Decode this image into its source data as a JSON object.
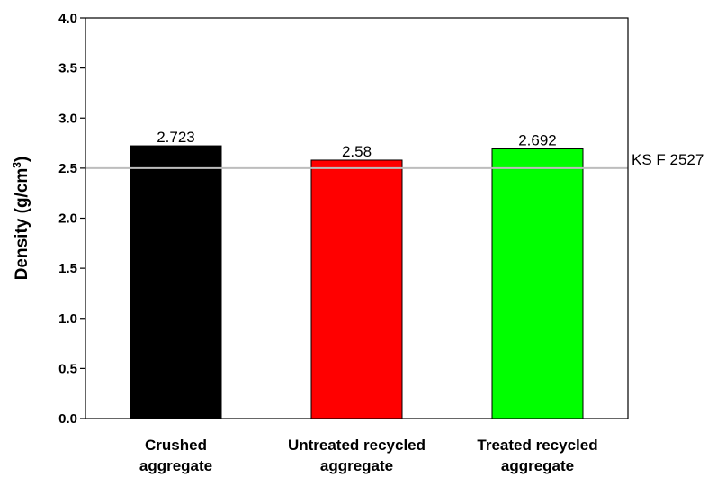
{
  "chart_data": {
    "type": "bar",
    "categories": [
      [
        "Crushed",
        "aggregate"
      ],
      [
        "Untreated recycled",
        "aggregate"
      ],
      [
        "Treated recycled",
        "aggregate"
      ]
    ],
    "values": [
      2.723,
      2.58,
      2.692
    ],
    "value_labels": [
      "2.723",
      "2.58",
      "2.692"
    ],
    "bar_colors": [
      "#000000",
      "#ff0000",
      "#00ff00"
    ],
    "ylabel": {
      "main": "Density (g/cm",
      "sup": "3",
      "end": ")"
    },
    "ylim": [
      0,
      4.0
    ],
    "yticks": [
      "0.0",
      "0.5",
      "1.0",
      "1.5",
      "2.0",
      "2.5",
      "3.0",
      "3.5",
      "4.0"
    ],
    "reference_line": {
      "value": 2.5,
      "label": "KS F 2527",
      "color": "#bdbdbd"
    },
    "grid": false,
    "legend": "none"
  }
}
